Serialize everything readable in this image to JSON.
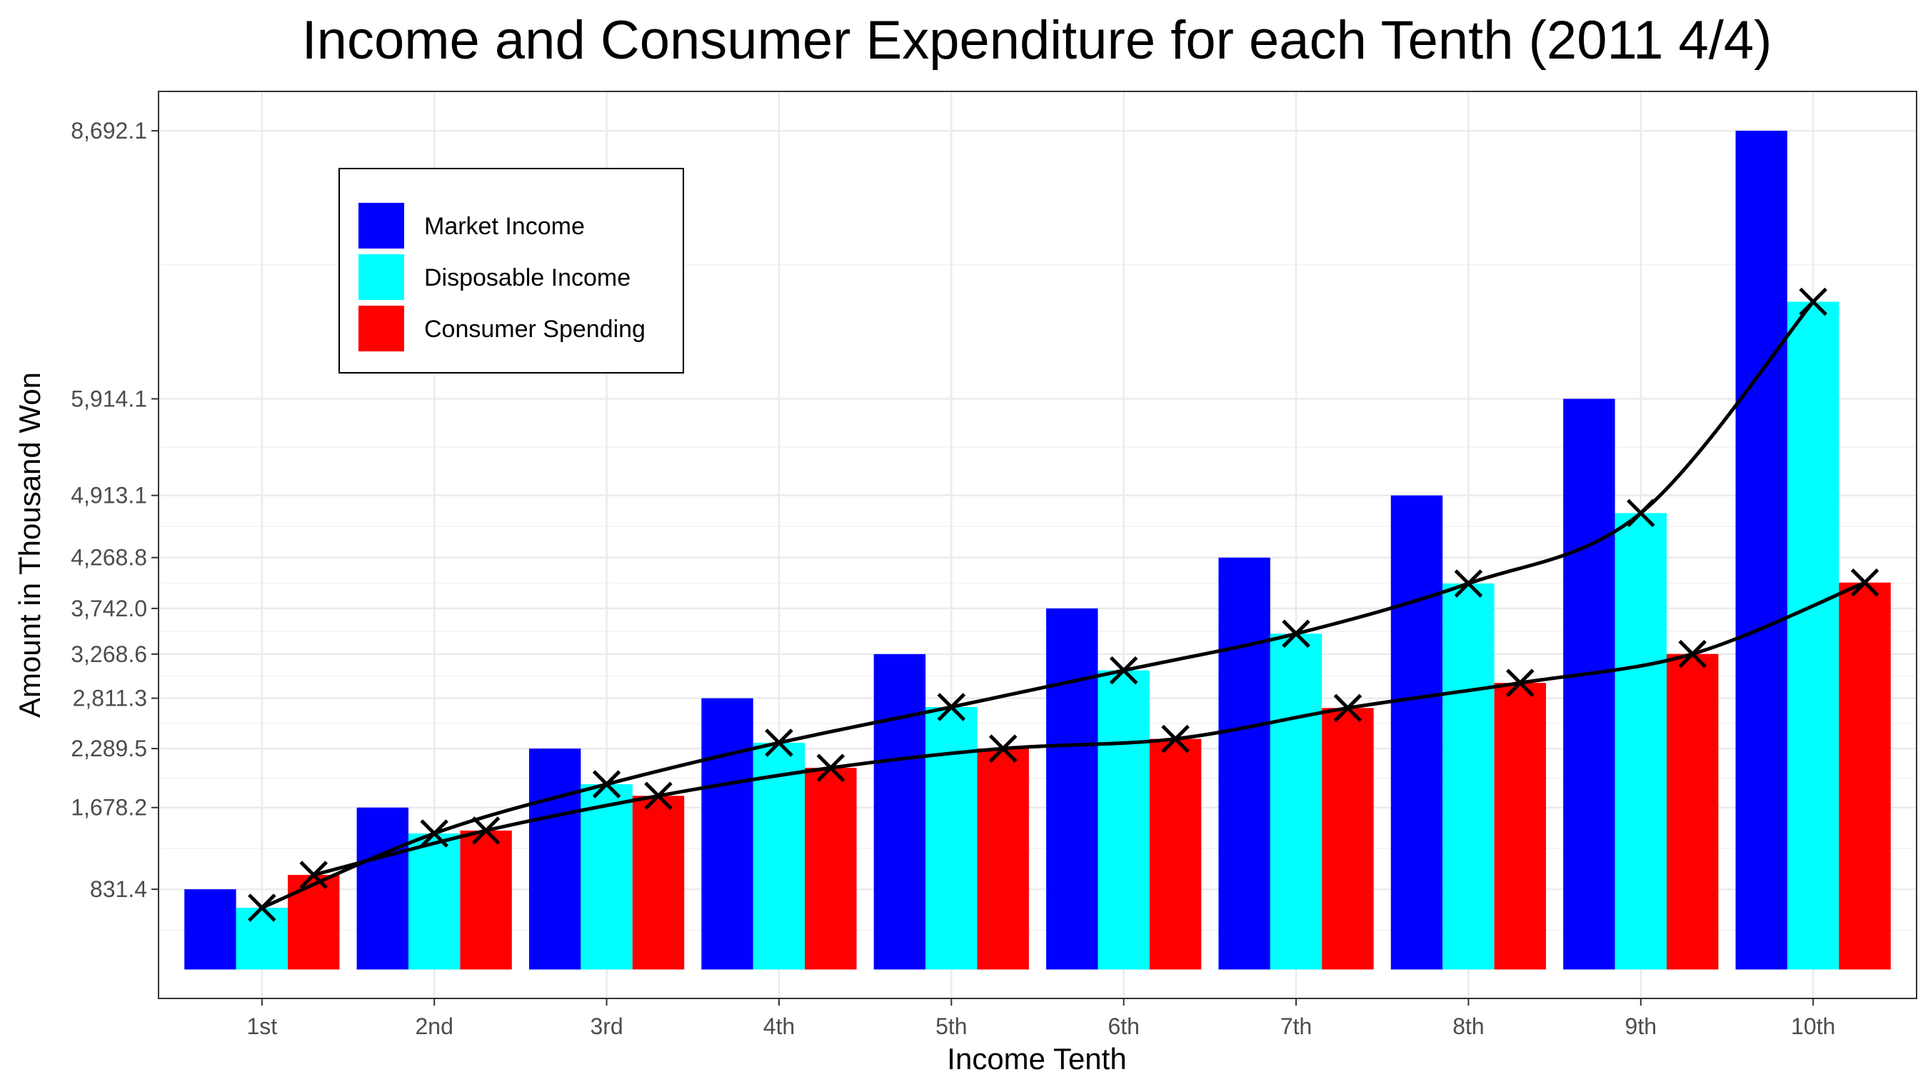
{
  "chart_data": {
    "type": "bar",
    "title": "Income and Consumer Expenditure for each Tenth (2011 4/4)",
    "xlabel": "Income Tenth",
    "ylabel": "Amount in Thousand Won",
    "categories": [
      "1st",
      "2nd",
      "3rd",
      "4th",
      "5th",
      "6th",
      "7th",
      "8th",
      "9th",
      "10th"
    ],
    "yticks": [
      831.4,
      1678.2,
      2289.5,
      2811.3,
      3268.6,
      3742.0,
      4268.8,
      4913.1,
      5914.1,
      8692.1
    ],
    "ytick_labels": [
      "831.4",
      "1,678.2",
      "2,289.5",
      "2,811.3",
      "3,268.6",
      "3,742.0",
      "4,268.8",
      "4,913.1",
      "5,914.1",
      "8,692.1"
    ],
    "ylim": [
      -300,
      9100
    ],
    "grid": true,
    "legend_position": "top-left",
    "series": [
      {
        "name": "Market Income",
        "color": "#0000ff",
        "values": [
          831.4,
          1678.2,
          2289.5,
          2811.3,
          3268.6,
          3742.0,
          4268.8,
          4913.1,
          5914.1,
          8692.1
        ]
      },
      {
        "name": "Disposable Income",
        "color": "#00ffff",
        "values": [
          640,
          1410,
          1920,
          2350,
          2720,
          3100,
          3480,
          4000,
          4730,
          6920
        ]
      },
      {
        "name": "Consumer Spending",
        "color": "#ff0000",
        "values": [
          980,
          1440,
          1800,
          2090,
          2290,
          2390,
          2710,
          2970,
          3270,
          4010
        ]
      }
    ],
    "lines": [
      {
        "follows": "Disposable Income",
        "marker": "x",
        "color": "#000000",
        "values": [
          640,
          1410,
          1920,
          2350,
          2720,
          3100,
          3480,
          4000,
          4730,
          6920
        ]
      },
      {
        "follows": "Consumer Spending",
        "marker": "x",
        "color": "#000000",
        "values": [
          980,
          1440,
          1800,
          2090,
          2290,
          2390,
          2710,
          2970,
          3270,
          4010
        ]
      }
    ]
  }
}
